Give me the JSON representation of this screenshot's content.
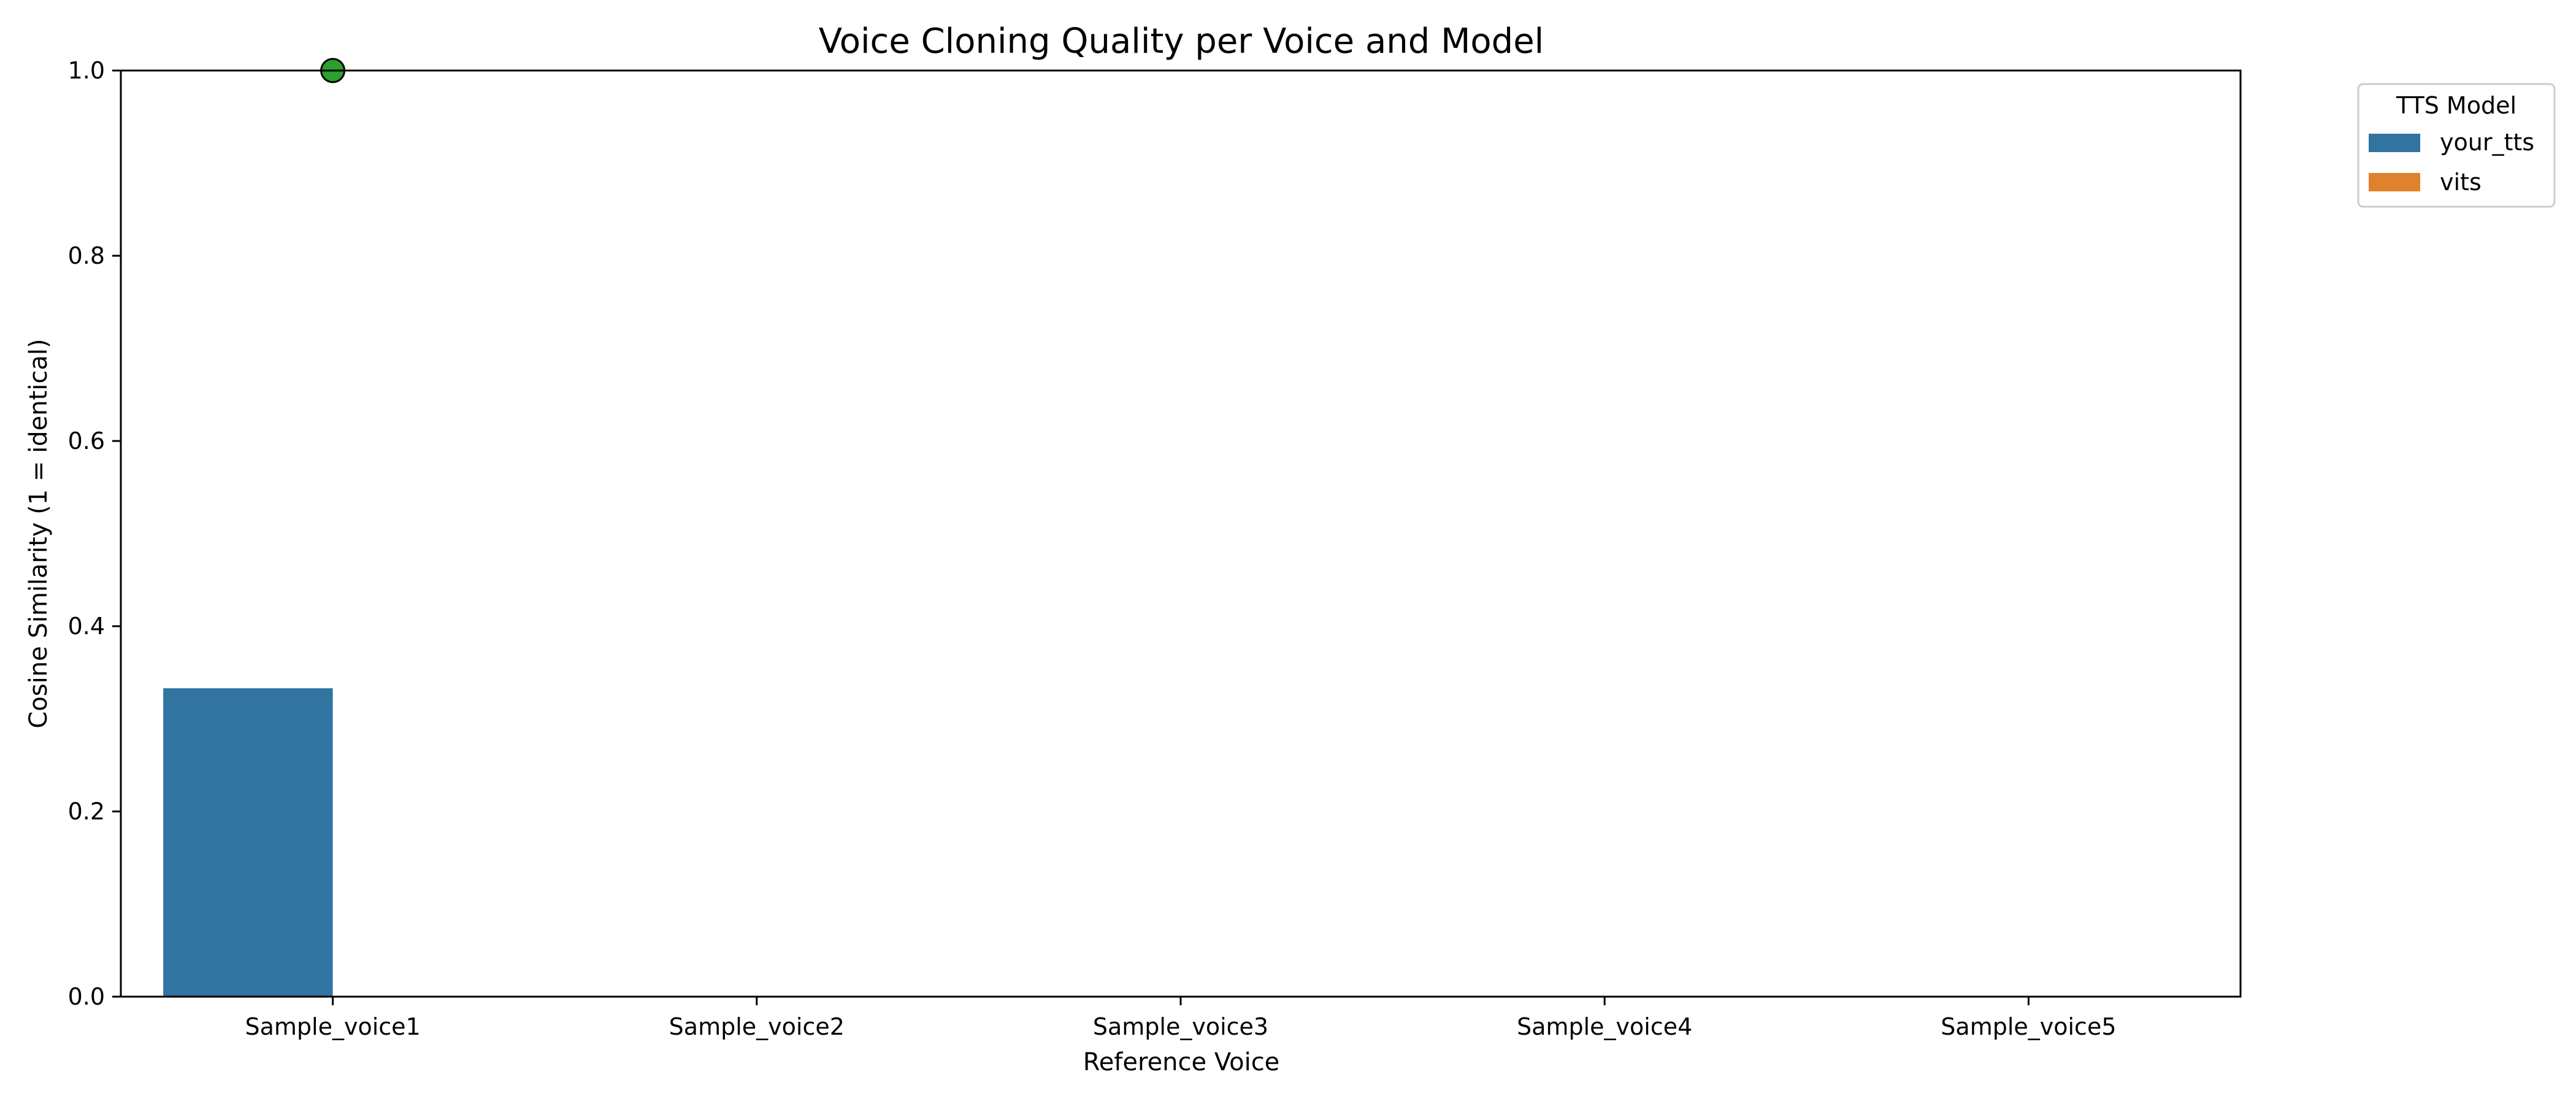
{
  "chart_data": {
    "type": "bar",
    "title": "Voice Cloning Quality per Voice and Model",
    "xlabel": "Reference Voice",
    "ylabel": "Cosine Similarity (1 = identical)",
    "ylim": [
      0,
      1.0
    ],
    "yticks": [
      0.0,
      0.2,
      0.4,
      0.6,
      0.8,
      1.0
    ],
    "ytick_labels": [
      "0.0",
      "0.2",
      "0.4",
      "0.6",
      "0.8",
      "1.0"
    ],
    "categories": [
      "Sample_voice1",
      "Sample_voice2",
      "Sample_voice3",
      "Sample_voice4",
      "Sample_voice5"
    ],
    "series": [
      {
        "name": "your_tts",
        "color": "#3274a1",
        "values": [
          0.333,
          null,
          null,
          null,
          null
        ]
      },
      {
        "name": "vits",
        "color": "#e1812c",
        "values": [
          null,
          null,
          null,
          null,
          null
        ]
      }
    ],
    "markers": [
      {
        "category": "Sample_voice1",
        "value": 1.0,
        "color": "#2ca02c"
      }
    ],
    "legend": {
      "title": "TTS Model",
      "placement": "outside-top-right"
    },
    "grid": false
  }
}
